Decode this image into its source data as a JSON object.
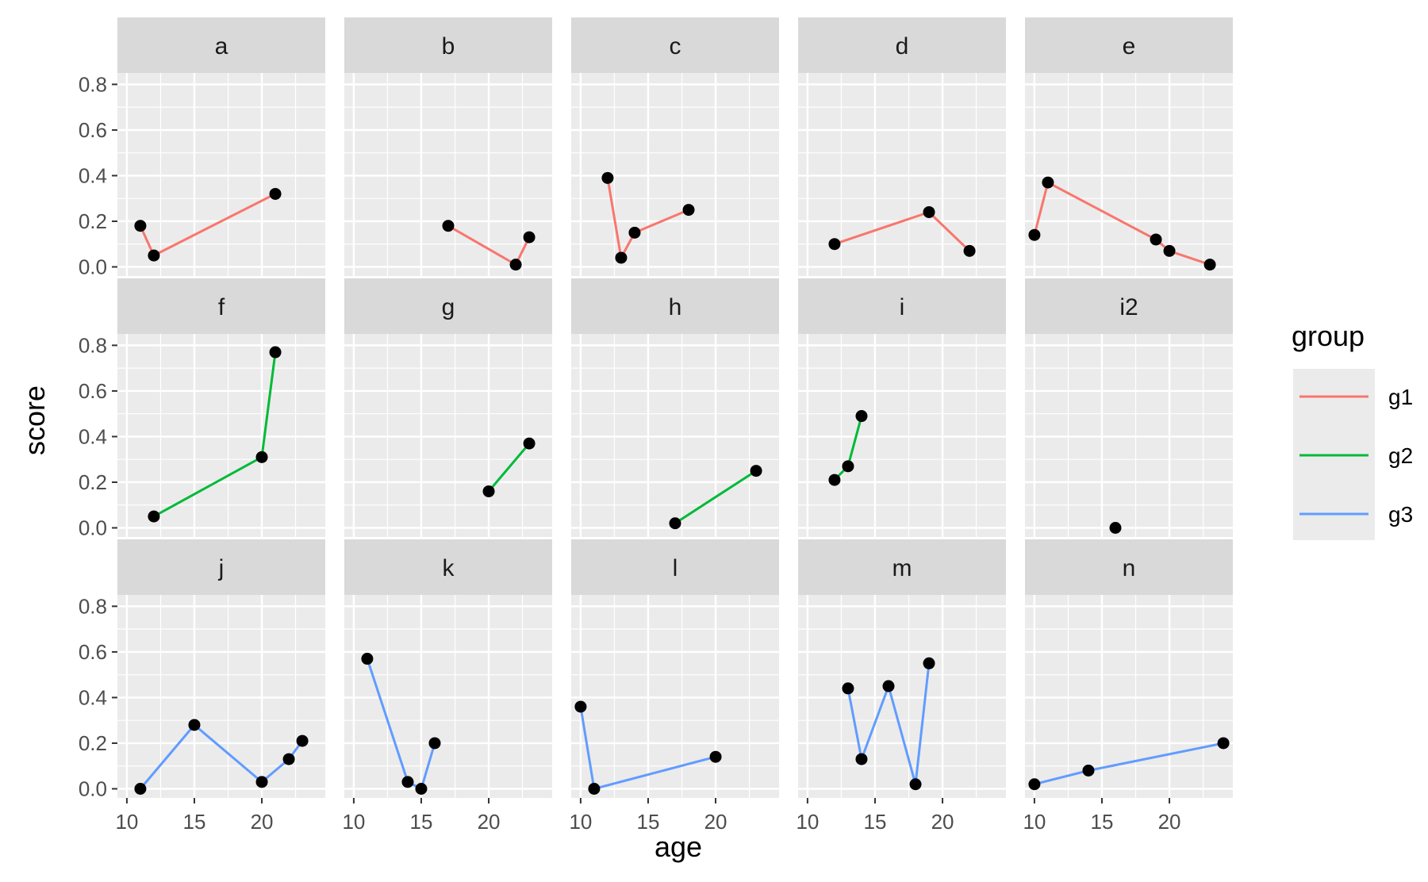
{
  "chart_data": {
    "type": "line",
    "facet_layout": {
      "rows": 3,
      "cols": 5
    },
    "xlabel": "age",
    "ylabel": "score",
    "xlim": [
      9.3,
      24.7
    ],
    "ylim": [
      -0.04,
      0.85
    ],
    "x_ticks": [
      "10",
      "15",
      "20"
    ],
    "y_ticks": [
      "0.0",
      "0.2",
      "0.4",
      "0.6",
      "0.8"
    ],
    "grid": true,
    "legend": {
      "title": "group",
      "position": "right",
      "entries": [
        {
          "name": "g1",
          "color": "#F8766D"
        },
        {
          "name": "g2",
          "color": "#00BA38"
        },
        {
          "name": "g3",
          "color": "#619CFF"
        }
      ]
    },
    "point_color": "#000000",
    "facets": [
      {
        "label": "a",
        "group": "g1",
        "x": [
          11,
          12,
          21
        ],
        "y": [
          0.18,
          0.05,
          0.32
        ]
      },
      {
        "label": "b",
        "group": "g1",
        "x": [
          17,
          22,
          23
        ],
        "y": [
          0.18,
          0.01,
          0.13
        ]
      },
      {
        "label": "c",
        "group": "g1",
        "x": [
          12,
          13,
          14,
          18
        ],
        "y": [
          0.39,
          0.04,
          0.15,
          0.25
        ]
      },
      {
        "label": "d",
        "group": "g1",
        "x": [
          12,
          19,
          22
        ],
        "y": [
          0.1,
          0.24,
          0.07
        ]
      },
      {
        "label": "e",
        "group": "g1",
        "x": [
          10,
          11,
          19,
          20,
          23
        ],
        "y": [
          0.14,
          0.37,
          0.12,
          0.07,
          0.01
        ]
      },
      {
        "label": "f",
        "group": "g2",
        "x": [
          12,
          20,
          21
        ],
        "y": [
          0.05,
          0.31,
          0.77
        ]
      },
      {
        "label": "g",
        "group": "g2",
        "x": [
          20,
          23
        ],
        "y": [
          0.16,
          0.37
        ]
      },
      {
        "label": "h",
        "group": "g2",
        "x": [
          17,
          23
        ],
        "y": [
          0.02,
          0.25
        ]
      },
      {
        "label": "i",
        "group": "g2",
        "x": [
          12,
          13,
          14
        ],
        "y": [
          0.21,
          0.27,
          0.49
        ]
      },
      {
        "label": "i2",
        "group": "g2",
        "x": [
          16
        ],
        "y": [
          0.0
        ]
      },
      {
        "label": "j",
        "group": "g3",
        "x": [
          11,
          15,
          20,
          22,
          23
        ],
        "y": [
          0.0,
          0.28,
          0.03,
          0.13,
          0.21
        ]
      },
      {
        "label": "k",
        "group": "g3",
        "x": [
          11,
          14,
          15,
          16
        ],
        "y": [
          0.57,
          0.03,
          0.0,
          0.2
        ]
      },
      {
        "label": "l",
        "group": "g3",
        "x": [
          10,
          11,
          20
        ],
        "y": [
          0.36,
          0.0,
          0.14
        ]
      },
      {
        "label": "m",
        "group": "g3",
        "x": [
          13,
          14,
          16,
          18,
          19
        ],
        "y": [
          0.44,
          0.13,
          0.45,
          0.02,
          0.55
        ]
      },
      {
        "label": "n",
        "group": "g3",
        "x": [
          10,
          14,
          24
        ],
        "y": [
          0.02,
          0.08,
          0.2
        ]
      }
    ]
  }
}
